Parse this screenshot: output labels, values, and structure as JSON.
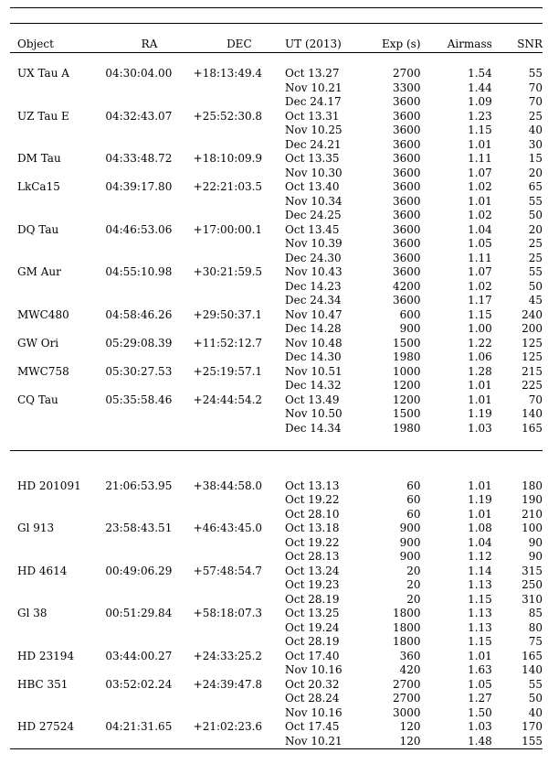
{
  "headers": [
    "Object",
    "RA",
    "DEC",
    "UT (2013)",
    "Exp (s)",
    "Airmass",
    "SNR"
  ],
  "groups": [
    [
      {
        "object": "UX Tau A",
        "ra": "04:30:04.00",
        "dec": "+18:13:49.4",
        "obs": [
          {
            "ut": "Oct 13.27",
            "exp": "2700",
            "airmass": "1.54",
            "snr": "55"
          },
          {
            "ut": "Nov 10.21",
            "exp": "3300",
            "airmass": "1.44",
            "snr": "70"
          },
          {
            "ut": "Dec 24.17",
            "exp": "3600",
            "airmass": "1.09",
            "snr": "70"
          }
        ]
      },
      {
        "object": "UZ Tau E",
        "ra": "04:32:43.07",
        "dec": "+25:52:30.8",
        "obs": [
          {
            "ut": "Oct 13.31",
            "exp": "3600",
            "airmass": "1.23",
            "snr": "25"
          },
          {
            "ut": "Nov 10.25",
            "exp": "3600",
            "airmass": "1.15",
            "snr": "40"
          },
          {
            "ut": "Dec 24.21",
            "exp": "3600",
            "airmass": "1.01",
            "snr": "30"
          }
        ]
      },
      {
        "object": "DM Tau",
        "ra": "04:33:48.72",
        "dec": "+18:10:09.9",
        "obs": [
          {
            "ut": "Oct 13.35",
            "exp": "3600",
            "airmass": "1.11",
            "snr": "15"
          },
          {
            "ut": "Nov 10.30",
            "exp": "3600",
            "airmass": "1.07",
            "snr": "20"
          }
        ]
      },
      {
        "object": "LkCa15",
        "ra": "04:39:17.80",
        "dec": "+22:21:03.5",
        "obs": [
          {
            "ut": "Oct 13.40",
            "exp": "3600",
            "airmass": "1.02",
            "snr": "65"
          },
          {
            "ut": "Nov 10.34",
            "exp": "3600",
            "airmass": "1.01",
            "snr": "55"
          },
          {
            "ut": "Dec 24.25",
            "exp": "3600",
            "airmass": "1.02",
            "snr": "50"
          }
        ]
      },
      {
        "object": "DQ Tau",
        "ra": "04:46:53.06",
        "dec": "+17:00:00.1",
        "obs": [
          {
            "ut": "Oct 13.45",
            "exp": "3600",
            "airmass": "1.04",
            "snr": "20"
          },
          {
            "ut": "Nov 10.39",
            "exp": "3600",
            "airmass": "1.05",
            "snr": "25"
          },
          {
            "ut": "Dec 24.30",
            "exp": "3600",
            "airmass": "1.11",
            "snr": "25"
          }
        ]
      },
      {
        "object": "GM Aur",
        "ra": "04:55:10.98",
        "dec": "+30:21:59.5",
        "obs": [
          {
            "ut": "Nov 10.43",
            "exp": "3600",
            "airmass": "1.07",
            "snr": "55"
          },
          {
            "ut": "Dec 14.23",
            "exp": "4200",
            "airmass": "1.02",
            "snr": "50"
          },
          {
            "ut": "Dec 24.34",
            "exp": "3600",
            "airmass": "1.17",
            "snr": "45"
          }
        ]
      },
      {
        "object": "MWC480",
        "ra": "04:58:46.26",
        "dec": "+29:50:37.1",
        "obs": [
          {
            "ut": "Nov 10.47",
            "exp": "600",
            "airmass": "1.15",
            "snr": "240"
          },
          {
            "ut": "Dec 14.28",
            "exp": "900",
            "airmass": "1.00",
            "snr": "200"
          }
        ]
      },
      {
        "object": "GW Ori",
        "ra": "05:29:08.39",
        "dec": "+11:52:12.7",
        "obs": [
          {
            "ut": "Nov 10.48",
            "exp": "1500",
            "airmass": "1.22",
            "snr": "125"
          },
          {
            "ut": "Dec 14.30",
            "exp": "1980",
            "airmass": "1.06",
            "snr": "125"
          }
        ]
      },
      {
        "object": "MWC758",
        "ra": "05:30:27.53",
        "dec": "+25:19:57.1",
        "obs": [
          {
            "ut": "Nov 10.51",
            "exp": "1000",
            "airmass": "1.28",
            "snr": "215"
          },
          {
            "ut": "Dec 14.32",
            "exp": "1200",
            "airmass": "1.01",
            "snr": "225"
          }
        ]
      },
      {
        "object": "CQ Tau",
        "ra": "05:35:58.46",
        "dec": "+24:44:54.2",
        "obs": [
          {
            "ut": "Oct 13.49",
            "exp": "1200",
            "airmass": "1.01",
            "snr": "70"
          },
          {
            "ut": "Nov 10.50",
            "exp": "1500",
            "airmass": "1.19",
            "snr": "140"
          },
          {
            "ut": "Dec 14.34",
            "exp": "1980",
            "airmass": "1.03",
            "snr": "165"
          }
        ]
      }
    ],
    [
      {
        "object": "HD 201091",
        "ra": "21:06:53.95",
        "dec": "+38:44:58.0",
        "obs": [
          {
            "ut": "Oct 13.13",
            "exp": "60",
            "airmass": "1.01",
            "snr": "180"
          },
          {
            "ut": "Oct 19.22",
            "exp": "60",
            "airmass": "1.19",
            "snr": "190"
          },
          {
            "ut": "Oct 28.10",
            "exp": "60",
            "airmass": "1.01",
            "snr": "210"
          }
        ]
      },
      {
        "object": "Gl 913",
        "ra": "23:58:43.51",
        "dec": "+46:43:45.0",
        "obs": [
          {
            "ut": "Oct 13.18",
            "exp": "900",
            "airmass": "1.08",
            "snr": "100"
          },
          {
            "ut": "Oct 19.22",
            "exp": "900",
            "airmass": "1.04",
            "snr": "90"
          },
          {
            "ut": "Oct 28.13",
            "exp": "900",
            "airmass": "1.12",
            "snr": "90"
          }
        ]
      },
      {
        "object": "HD 4614",
        "ra": "00:49:06.29",
        "dec": "+57:48:54.7",
        "obs": [
          {
            "ut": "Oct 13.24",
            "exp": "20",
            "airmass": "1.14",
            "snr": "315"
          },
          {
            "ut": "Oct 19.23",
            "exp": "20",
            "airmass": "1.13",
            "snr": "250"
          },
          {
            "ut": "Oct 28.19",
            "exp": "20",
            "airmass": "1.15",
            "snr": "310"
          }
        ]
      },
      {
        "object": "Gl 38",
        "ra": "00:51:29.84",
        "dec": "+58:18:07.3",
        "obs": [
          {
            "ut": "Oct 13.25",
            "exp": "1800",
            "airmass": "1.13",
            "snr": "85"
          },
          {
            "ut": "Oct 19.24",
            "exp": "1800",
            "airmass": "1.13",
            "snr": "80"
          },
          {
            "ut": "Oct 28.19",
            "exp": "1800",
            "airmass": "1.15",
            "snr": "75"
          }
        ]
      },
      {
        "object": "HD 23194",
        "ra": "03:44:00.27",
        "dec": "+24:33:25.2",
        "obs": [
          {
            "ut": "Oct 17.40",
            "exp": "360",
            "airmass": "1.01",
            "snr": "165"
          },
          {
            "ut": "Nov 10.16",
            "exp": "420",
            "airmass": "1.63",
            "snr": "140"
          }
        ]
      },
      {
        "object": "HBC 351",
        "ra": "03:52:02.24",
        "dec": "+24:39:47.8",
        "obs": [
          {
            "ut": "Oct 20.32",
            "exp": "2700",
            "airmass": "1.05",
            "snr": "55"
          },
          {
            "ut": "Oct 28.24",
            "exp": "2700",
            "airmass": "1.27",
            "snr": "50"
          },
          {
            "ut": "Nov 10.16",
            "exp": "3000",
            "airmass": "1.50",
            "snr": "40"
          }
        ]
      },
      {
        "object": "HD 27524",
        "ra": "04:21:31.65",
        "dec": "+21:02:23.6",
        "obs": [
          {
            "ut": "Oct 17.45",
            "exp": "120",
            "airmass": "1.03",
            "snr": "170"
          },
          {
            "ut": "Nov 10.21",
            "exp": "120",
            "airmass": "1.48",
            "snr": "155"
          }
        ]
      }
    ]
  ]
}
